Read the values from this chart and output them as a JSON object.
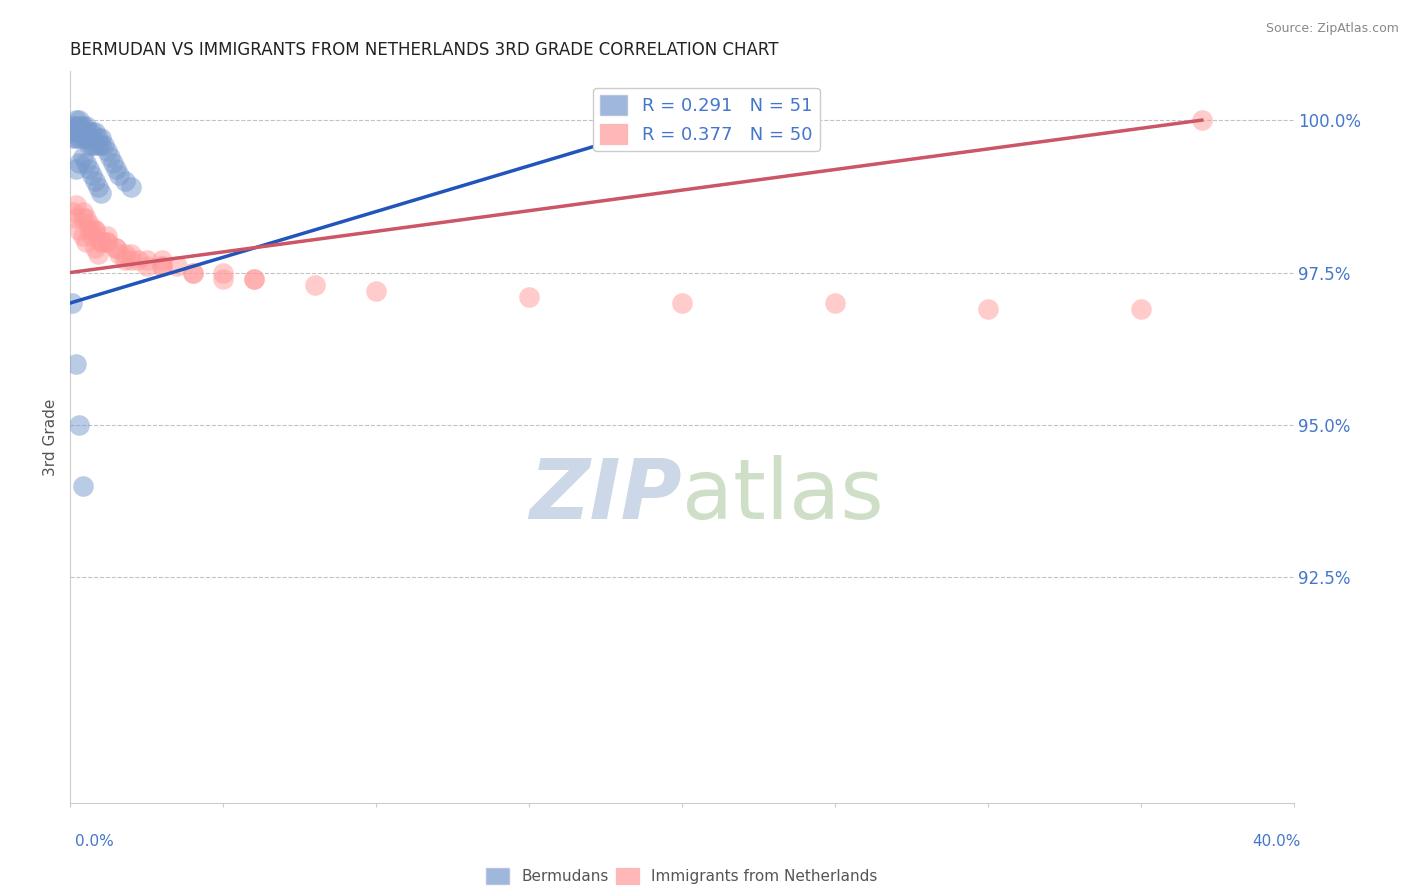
{
  "title": "BERMUDAN VS IMMIGRANTS FROM NETHERLANDS 3RD GRADE CORRELATION CHART",
  "source": "Source: ZipAtlas.com",
  "ylabel": "3rd Grade",
  "xlim": [
    0.0,
    0.4
  ],
  "ylim": [
    0.888,
    1.008
  ],
  "yticks": [
    0.925,
    0.95,
    0.975,
    1.0
  ],
  "ytick_labels": [
    "92.5%",
    "95.0%",
    "97.5%",
    "100.0%"
  ],
  "berm_color": "#7799cc",
  "neth_color": "#ff9999",
  "blue_line_color": "#2255bb",
  "pink_line_color": "#cc5566",
  "grid_color": "#aaaaaa",
  "title_color": "#222222",
  "ylabel_color": "#555555",
  "tick_label_color": "#4477cc",
  "source_color": "#888888",
  "watermark_color": "#ccd8e8",
  "legend_R_berm": "R = 0.291",
  "legend_N_berm": "N = 51",
  "legend_R_neth": "R = 0.377",
  "legend_N_neth": "N = 50",
  "berm_x": [
    0.0005,
    0.001,
    0.001,
    0.001,
    0.002,
    0.002,
    0.002,
    0.002,
    0.003,
    0.003,
    0.003,
    0.003,
    0.004,
    0.004,
    0.004,
    0.005,
    0.005,
    0.005,
    0.006,
    0.006,
    0.006,
    0.007,
    0.007,
    0.008,
    0.008,
    0.009,
    0.009,
    0.01,
    0.01,
    0.011,
    0.012,
    0.013,
    0.014,
    0.015,
    0.016,
    0.018,
    0.02,
    0.007,
    0.004,
    0.003,
    0.002,
    0.005,
    0.006,
    0.007,
    0.008,
    0.009,
    0.01,
    0.002,
    0.003,
    0.004,
    0.2
  ],
  "berm_y": [
    0.97,
    0.999,
    0.998,
    0.997,
    1.0,
    0.999,
    0.998,
    0.997,
    1.0,
    0.999,
    0.998,
    0.997,
    0.999,
    0.998,
    0.997,
    0.999,
    0.998,
    0.997,
    0.998,
    0.997,
    0.996,
    0.998,
    0.997,
    0.998,
    0.996,
    0.997,
    0.996,
    0.997,
    0.996,
    0.996,
    0.995,
    0.994,
    0.993,
    0.992,
    0.991,
    0.99,
    0.989,
    0.996,
    0.994,
    0.993,
    0.992,
    0.993,
    0.992,
    0.991,
    0.99,
    0.989,
    0.988,
    0.96,
    0.95,
    0.94,
    1.0
  ],
  "neth_x": [
    0.001,
    0.002,
    0.003,
    0.004,
    0.005,
    0.006,
    0.007,
    0.008,
    0.009,
    0.01,
    0.012,
    0.015,
    0.018,
    0.02,
    0.025,
    0.03,
    0.035,
    0.04,
    0.05,
    0.06,
    0.002,
    0.004,
    0.006,
    0.008,
    0.012,
    0.016,
    0.022,
    0.03,
    0.004,
    0.007,
    0.01,
    0.015,
    0.02,
    0.03,
    0.05,
    0.005,
    0.008,
    0.012,
    0.018,
    0.025,
    0.04,
    0.06,
    0.08,
    0.1,
    0.15,
    0.2,
    0.25,
    0.3,
    0.35,
    0.37
  ],
  "neth_y": [
    0.985,
    0.984,
    0.982,
    0.981,
    0.98,
    0.982,
    0.981,
    0.979,
    0.978,
    0.98,
    0.981,
    0.979,
    0.977,
    0.978,
    0.976,
    0.977,
    0.976,
    0.975,
    0.975,
    0.974,
    0.986,
    0.984,
    0.983,
    0.982,
    0.98,
    0.978,
    0.977,
    0.976,
    0.985,
    0.982,
    0.98,
    0.979,
    0.977,
    0.976,
    0.974,
    0.984,
    0.982,
    0.98,
    0.978,
    0.977,
    0.975,
    0.974,
    0.973,
    0.972,
    0.971,
    0.97,
    0.97,
    0.969,
    0.969,
    1.0
  ]
}
